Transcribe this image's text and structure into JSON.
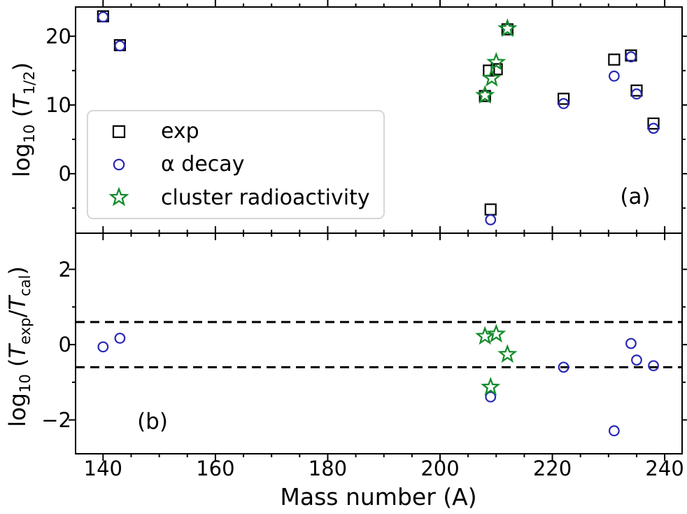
{
  "figure": {
    "background": "#ffffff"
  },
  "xaxis": {
    "label": "Mass number (A)",
    "xlim": [
      135.1,
      243.1
    ],
    "major_ticks": [
      140,
      160,
      180,
      200,
      220,
      240
    ],
    "minor_ticks": [
      145,
      150,
      155,
      165,
      170,
      175,
      185,
      190,
      195,
      205,
      210,
      215,
      225,
      230,
      235
    ]
  },
  "legend": {
    "items": [
      {
        "label": "exp",
        "marker": "square",
        "color": "#000000"
      },
      {
        "label": "α decay",
        "marker": "circle",
        "color": "#2828b4"
      },
      {
        "label": "cluster radioactivity",
        "marker": "star",
        "color": "#158c2d"
      }
    ]
  },
  "chart_data": [
    {
      "type": "scatter",
      "panel": "a",
      "annotation": "(a)",
      "ylabel_text": "log10 (T1/2)",
      "ylabel_parts": [
        {
          "t": "log"
        },
        {
          "t": "10",
          "sub": true
        },
        {
          "t": " ("
        },
        {
          "t": "T",
          "italic": true
        },
        {
          "t": "1/2",
          "sub": true
        },
        {
          "t": ")"
        }
      ],
      "ylim": [
        -8.65,
        24.25
      ],
      "yticks_major": [
        0,
        10,
        20
      ],
      "yticks_minor": [
        -5,
        5,
        15
      ],
      "series": [
        {
          "name": "exp",
          "marker": "square",
          "color": "#000000",
          "points": [
            [
              140,
              22.9
            ],
            [
              143,
              18.7
            ],
            [
              208,
              11.3
            ],
            [
              208.7,
              15.0
            ],
            [
              210.1,
              15.2
            ],
            [
              212,
              21.0
            ],
            [
              209,
              -5.2
            ],
            [
              222,
              10.9
            ],
            [
              231,
              16.6
            ],
            [
              234,
              17.2
            ],
            [
              235,
              12.1
            ],
            [
              238,
              7.3
            ]
          ]
        },
        {
          "name": "α decay",
          "marker": "circle",
          "color": "#2828b4",
          "points": [
            [
              140,
              22.8
            ],
            [
              143,
              18.6
            ],
            [
              209,
              -6.7
            ],
            [
              222,
              10.2
            ],
            [
              231,
              14.2
            ],
            [
              234,
              17.0
            ],
            [
              235,
              11.6
            ],
            [
              238,
              6.6
            ]
          ]
        },
        {
          "name": "cluster radioactivity",
          "marker": "star",
          "color": "#158c2d",
          "points": [
            [
              208,
              11.4
            ],
            [
              209.2,
              13.9
            ],
            [
              210,
              16.2
            ],
            [
              212,
              21.1
            ]
          ]
        }
      ]
    },
    {
      "type": "scatter",
      "panel": "b",
      "annotation": "(b)",
      "ylabel_text": "log10 (Texp/Tcal)",
      "ylabel_parts": [
        {
          "t": "log"
        },
        {
          "t": "10",
          "sub": true
        },
        {
          "t": " ("
        },
        {
          "t": "T",
          "italic": true
        },
        {
          "t": "exp",
          "sub": true
        },
        {
          "t": "/"
        },
        {
          "t": "T",
          "italic": true
        },
        {
          "t": "cal",
          "sub": true
        },
        {
          "t": ")"
        }
      ],
      "ylim": [
        -2.9,
        2.96
      ],
      "yticks_major": [
        -2,
        0,
        2
      ],
      "yticks_minor": [
        -1,
        1
      ],
      "dashed_lines": [
        0.6,
        -0.6
      ],
      "dashed_color": "#000000",
      "series": [
        {
          "name": "α decay",
          "marker": "circle",
          "color": "#2828b4",
          "points": [
            [
              140,
              -0.06
            ],
            [
              143,
              0.17
            ],
            [
              209,
              -1.39
            ],
            [
              222,
              -0.6
            ],
            [
              231,
              -2.29
            ],
            [
              234,
              0.03
            ],
            [
              235,
              -0.41
            ],
            [
              238,
              -0.56
            ]
          ]
        },
        {
          "name": "cluster radioactivity",
          "marker": "star",
          "color": "#158c2d",
          "points": [
            [
              208,
              0.22
            ],
            [
              209,
              -1.13
            ],
            [
              210,
              0.28
            ],
            [
              212,
              -0.26
            ]
          ]
        }
      ]
    }
  ]
}
